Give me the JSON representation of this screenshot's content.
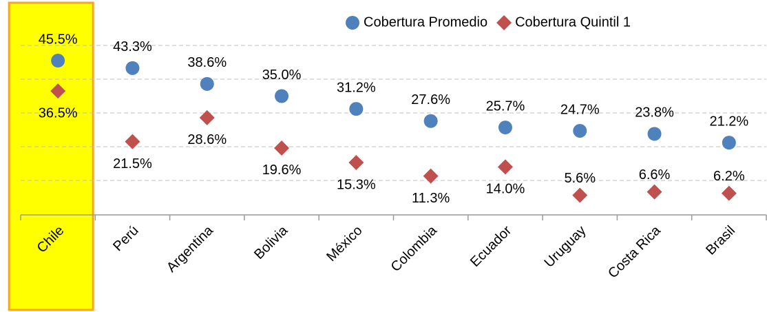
{
  "chart_data": {
    "type": "dot",
    "categories": [
      "Chile",
      "Perú",
      "Argentina",
      "Bolivia",
      "México",
      "Colombia",
      "Ecuador",
      "Uruguay",
      "Costa Rica",
      "Brasil"
    ],
    "series": [
      {
        "name": "Cobertura Promedio",
        "color": "#4f81bd",
        "marker": "circle",
        "values": [
          45.5,
          43.3,
          38.6,
          35.0,
          31.2,
          27.6,
          25.7,
          24.7,
          23.8,
          21.2
        ],
        "value_labels": [
          "45.5%",
          "43.3%",
          "38.6%",
          "35.0%",
          "31.2%",
          "27.6%",
          "25.7%",
          "24.7%",
          "23.8%",
          "21.2%"
        ]
      },
      {
        "name": "Cobertura Quintil 1",
        "color": "#c0504d",
        "marker": "diamond",
        "values": [
          36.5,
          21.5,
          28.6,
          19.6,
          15.3,
          11.3,
          14.0,
          5.6,
          6.6,
          6.2
        ],
        "value_labels": [
          "36.5%",
          "21.5%",
          "28.6%",
          "19.6%",
          "15.3%",
          "11.3%",
          "14.0%",
          "5.6%",
          "6.6%",
          "6.2%"
        ]
      }
    ],
    "highlight": {
      "category": "Chile",
      "color": "#ffff00",
      "border": "#f5a623"
    },
    "ylim": [
      0,
      50
    ],
    "yticks": [
      10,
      20,
      30,
      40,
      50
    ],
    "grid": true,
    "legend": "top-right"
  }
}
